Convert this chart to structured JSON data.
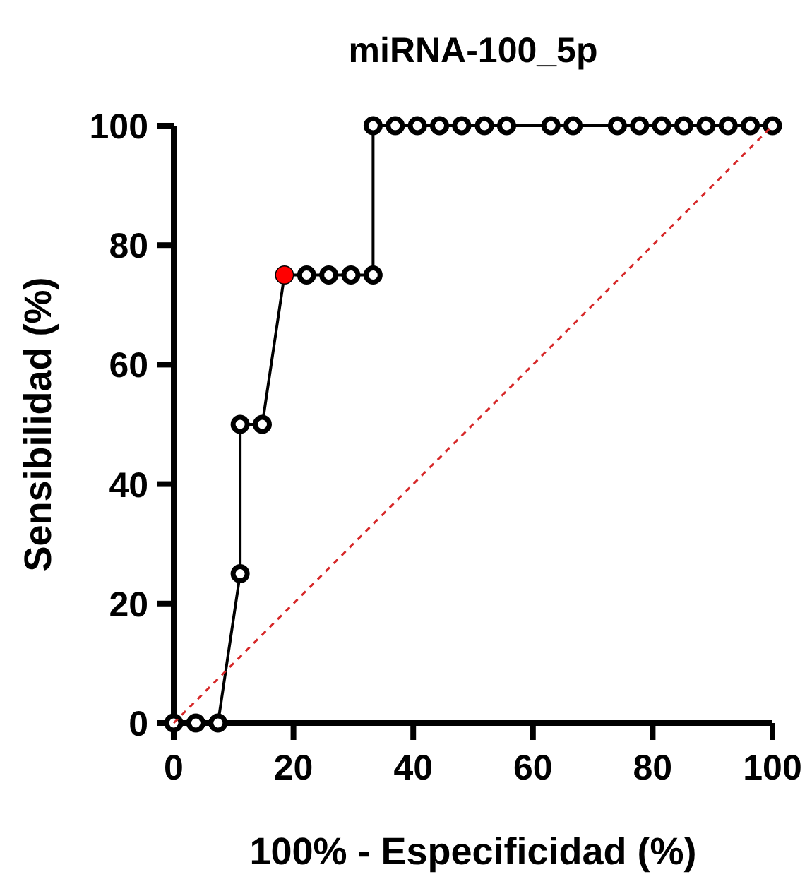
{
  "chart_data": {
    "type": "line",
    "title": "miRNA-100_5p",
    "xlabel": "100% - Especificidad (%)",
    "ylabel": "Sensibilidad  (%)",
    "xlim": [
      0,
      100
    ],
    "ylim": [
      0,
      100
    ],
    "xticks": [
      0,
      20,
      40,
      60,
      80,
      100
    ],
    "yticks": [
      0,
      20,
      40,
      60,
      80,
      100
    ],
    "grid": false,
    "series": [
      {
        "color": "#000000",
        "marker": "circle",
        "line_style": "solid",
        "x": [
          0,
          3.7,
          7.4,
          11.1,
          11.1,
          14.8,
          18.5,
          22.2,
          25.9,
          29.6,
          33.3,
          33.3,
          37.0,
          40.7,
          44.4,
          48.1,
          51.9,
          55.6,
          63.0,
          66.7,
          74.1,
          77.8,
          81.5,
          85.2,
          88.9,
          92.6,
          96.3,
          100
        ],
        "values": [
          0,
          0,
          0,
          25,
          50,
          50,
          75,
          75,
          75,
          75,
          75,
          100,
          100,
          100,
          100,
          100,
          100,
          100,
          100,
          100,
          100,
          100,
          100,
          100,
          100,
          100,
          100,
          100
        ]
      },
      {
        "type": "line",
        "color": "#d62728",
        "marker": "none",
        "line_style": "dashed",
        "x": [
          0,
          100
        ],
        "values": [
          0,
          100
        ]
      },
      {
        "type": "scatter",
        "color": "#ff0000",
        "marker": "circle",
        "x": [
          18.5
        ],
        "values": [
          75
        ]
      }
    ]
  }
}
